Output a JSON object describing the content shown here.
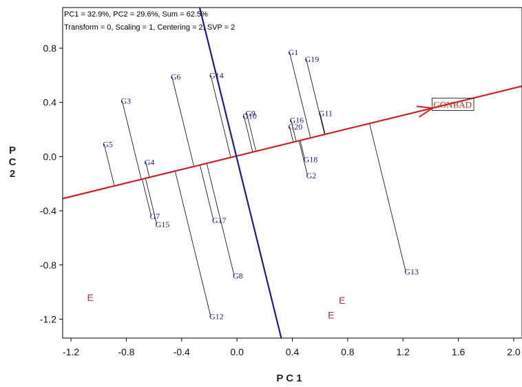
{
  "chart_data": {
    "type": "scatter",
    "title": "",
    "header_lines": [
      "PC1 = 32.9%, PC2 = 29.6%, Sum = 62.5%",
      "Transform = 0, Scaling = 1, Centering = 2, SVP = 2"
    ],
    "xlabel": "P C 1",
    "ylabel": "P C 2",
    "ylabel_stacked": "P\nC\n2",
    "xlim": [
      -1.26,
      2.06
    ],
    "ylim": [
      -1.34,
      1.1
    ],
    "x_ticks": [
      -1.2,
      -0.8,
      -0.4,
      0.0,
      0.4,
      0.8,
      1.2,
      1.6,
      2.0
    ],
    "x_tick_labels": [
      "-1.2",
      "-0.8",
      "-0.4",
      "0.0",
      "0.4",
      "0.8",
      "1.2",
      "1.6",
      "2.0"
    ],
    "y_ticks": [
      -1.2,
      -0.8,
      -0.4,
      0.0,
      0.4,
      0.8
    ],
    "y_tick_labels": [
      "-1.2",
      "-0.8",
      "-0.4",
      "0.0",
      "0.4",
      "0.8"
    ],
    "grid": false,
    "axis_lines": {
      "ata": {
        "color": "#cc2222",
        "from": [
          -1.26,
          -0.31
        ],
        "to": [
          2.06,
          0.52
        ]
      },
      "perpendicular": {
        "color": "#1a1a99",
        "from": [
          -0.27,
          1.1
        ],
        "to": [
          0.32,
          -1.34
        ]
      }
    },
    "environment": {
      "label": "GONBAD",
      "x": 1.42,
      "y": 0.33,
      "color": "#cc2222"
    },
    "genotypes": [
      {
        "label": "G1",
        "x": 0.38,
        "y": 0.77
      },
      {
        "label": "G19",
        "x": 0.5,
        "y": 0.72
      },
      {
        "label": "G6",
        "x": -0.47,
        "y": 0.59
      },
      {
        "label": "G14",
        "x": -0.19,
        "y": 0.6
      },
      {
        "label": "G3",
        "x": -0.83,
        "y": 0.41
      },
      {
        "label": "G9",
        "x": 0.07,
        "y": 0.32
      },
      {
        "label": "G10",
        "x": 0.05,
        "y": 0.3
      },
      {
        "label": "G11",
        "x": 0.6,
        "y": 0.32
      },
      {
        "label": "G16",
        "x": 0.39,
        "y": 0.27
      },
      {
        "label": "G20",
        "x": 0.38,
        "y": 0.22
      },
      {
        "label": "G5",
        "x": -0.96,
        "y": 0.09
      },
      {
        "label": "G18",
        "x": 0.49,
        "y": -0.02
      },
      {
        "label": "G4",
        "x": -0.66,
        "y": -0.04
      },
      {
        "label": "G2",
        "x": 0.51,
        "y": -0.14
      },
      {
        "label": "G7",
        "x": -0.62,
        "y": -0.44
      },
      {
        "label": "G15",
        "x": -0.58,
        "y": -0.5
      },
      {
        "label": "G17",
        "x": -0.17,
        "y": -0.47
      },
      {
        "label": "G8",
        "x": -0.02,
        "y": -0.88
      },
      {
        "label": "G13",
        "x": 1.22,
        "y": -0.85
      },
      {
        "label": "G12",
        "x": -0.19,
        "y": -1.18
      }
    ],
    "extra_markers": [
      {
        "label": "E",
        "x": -1.06,
        "y": -1.04
      },
      {
        "label": "E",
        "x": 0.76,
        "y": -1.06
      },
      {
        "label": "E",
        "x": 0.68,
        "y": -1.17
      }
    ],
    "colors": {
      "genotype": "#1a1a8c",
      "environment": "#cc2222",
      "marker_e": "#aa3333",
      "projection": "#000000",
      "axis": "#000000"
    }
  }
}
